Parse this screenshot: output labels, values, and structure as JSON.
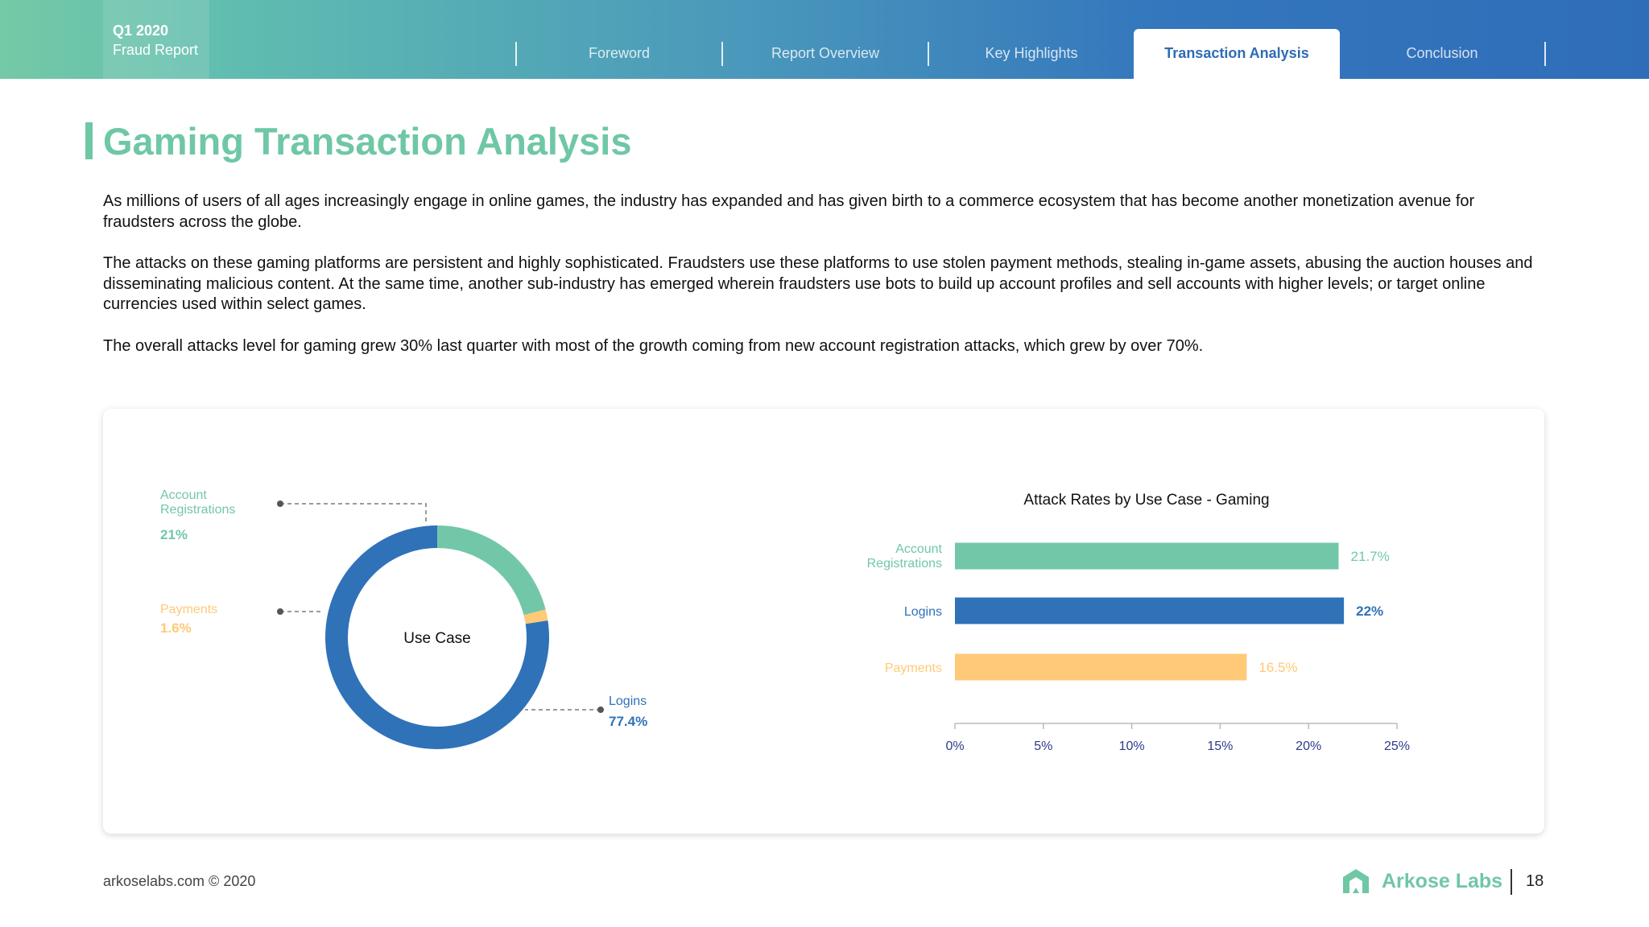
{
  "header": {
    "report_period": "Q1 2020",
    "report_name": "Fraud Report",
    "tabs": [
      {
        "label": "Foreword",
        "active": false
      },
      {
        "label": "Report Overview",
        "active": false
      },
      {
        "label": "Key Highlights",
        "active": false
      },
      {
        "label": "Transaction Analysis",
        "active": true
      },
      {
        "label": "Conclusion",
        "active": false
      }
    ]
  },
  "main": {
    "title": "Gaming Transaction Analysis",
    "paragraphs": [
      "As millions of users of all ages increasingly engage in online games, the industry has expanded and has given birth to a commerce ecosystem that has become another monetization avenue for fraudsters across the globe.",
      "The attacks on these gaming platforms are persistent and highly sophisticated. Fraudsters use these platforms to use stolen payment methods, stealing in-game assets, abusing the auction houses and disseminating malicious content. At the same time, another sub-industry has emerged wherein fraudsters use bots to build up account profiles and sell accounts with higher levels; or target online currencies used within select games.",
      "The overall attacks level for gaming grew 30% last quarter with most of the growth coming from new account registration attacks, which grew by over 70%."
    ]
  },
  "chart_data": [
    {
      "type": "pie",
      "title": "Use Case",
      "donut": true,
      "categories": [
        "Account Registrations",
        "Payments",
        "Logins"
      ],
      "label_lines": [
        [
          "Account",
          "Registrations"
        ],
        [
          "Payments"
        ],
        [
          "Logins"
        ]
      ],
      "values": [
        21,
        1.6,
        77.4
      ],
      "value_labels": [
        "21%",
        "1.6%",
        "77.4%"
      ],
      "colors": [
        "#72c7a8",
        "#ffc977",
        "#2f72b8"
      ]
    },
    {
      "type": "bar",
      "orientation": "horizontal",
      "title": "Attack Rates by Use Case - Gaming",
      "categories": [
        "Account Registrations",
        "Logins",
        "Payments"
      ],
      "label_lines": [
        [
          "Account",
          "Registrations"
        ],
        [
          "Logins"
        ],
        [
          "Payments"
        ]
      ],
      "values": [
        21.7,
        22,
        16.5
      ],
      "value_labels": [
        "21.7%",
        "22%",
        "16.5%"
      ],
      "colors": [
        "#72c7a8",
        "#2f72b8",
        "#ffc977"
      ],
      "xlim": [
        0,
        25
      ],
      "ticks": [
        0,
        5,
        10,
        15,
        20,
        25
      ],
      "tick_labels": [
        "0%",
        "5%",
        "10%",
        "15%",
        "20%",
        "25%"
      ],
      "grid": false
    }
  ],
  "footer": {
    "copyright": "arkoselabs.com © 2020",
    "logo_text": "Arkose Labs",
    "page_number": "18"
  }
}
